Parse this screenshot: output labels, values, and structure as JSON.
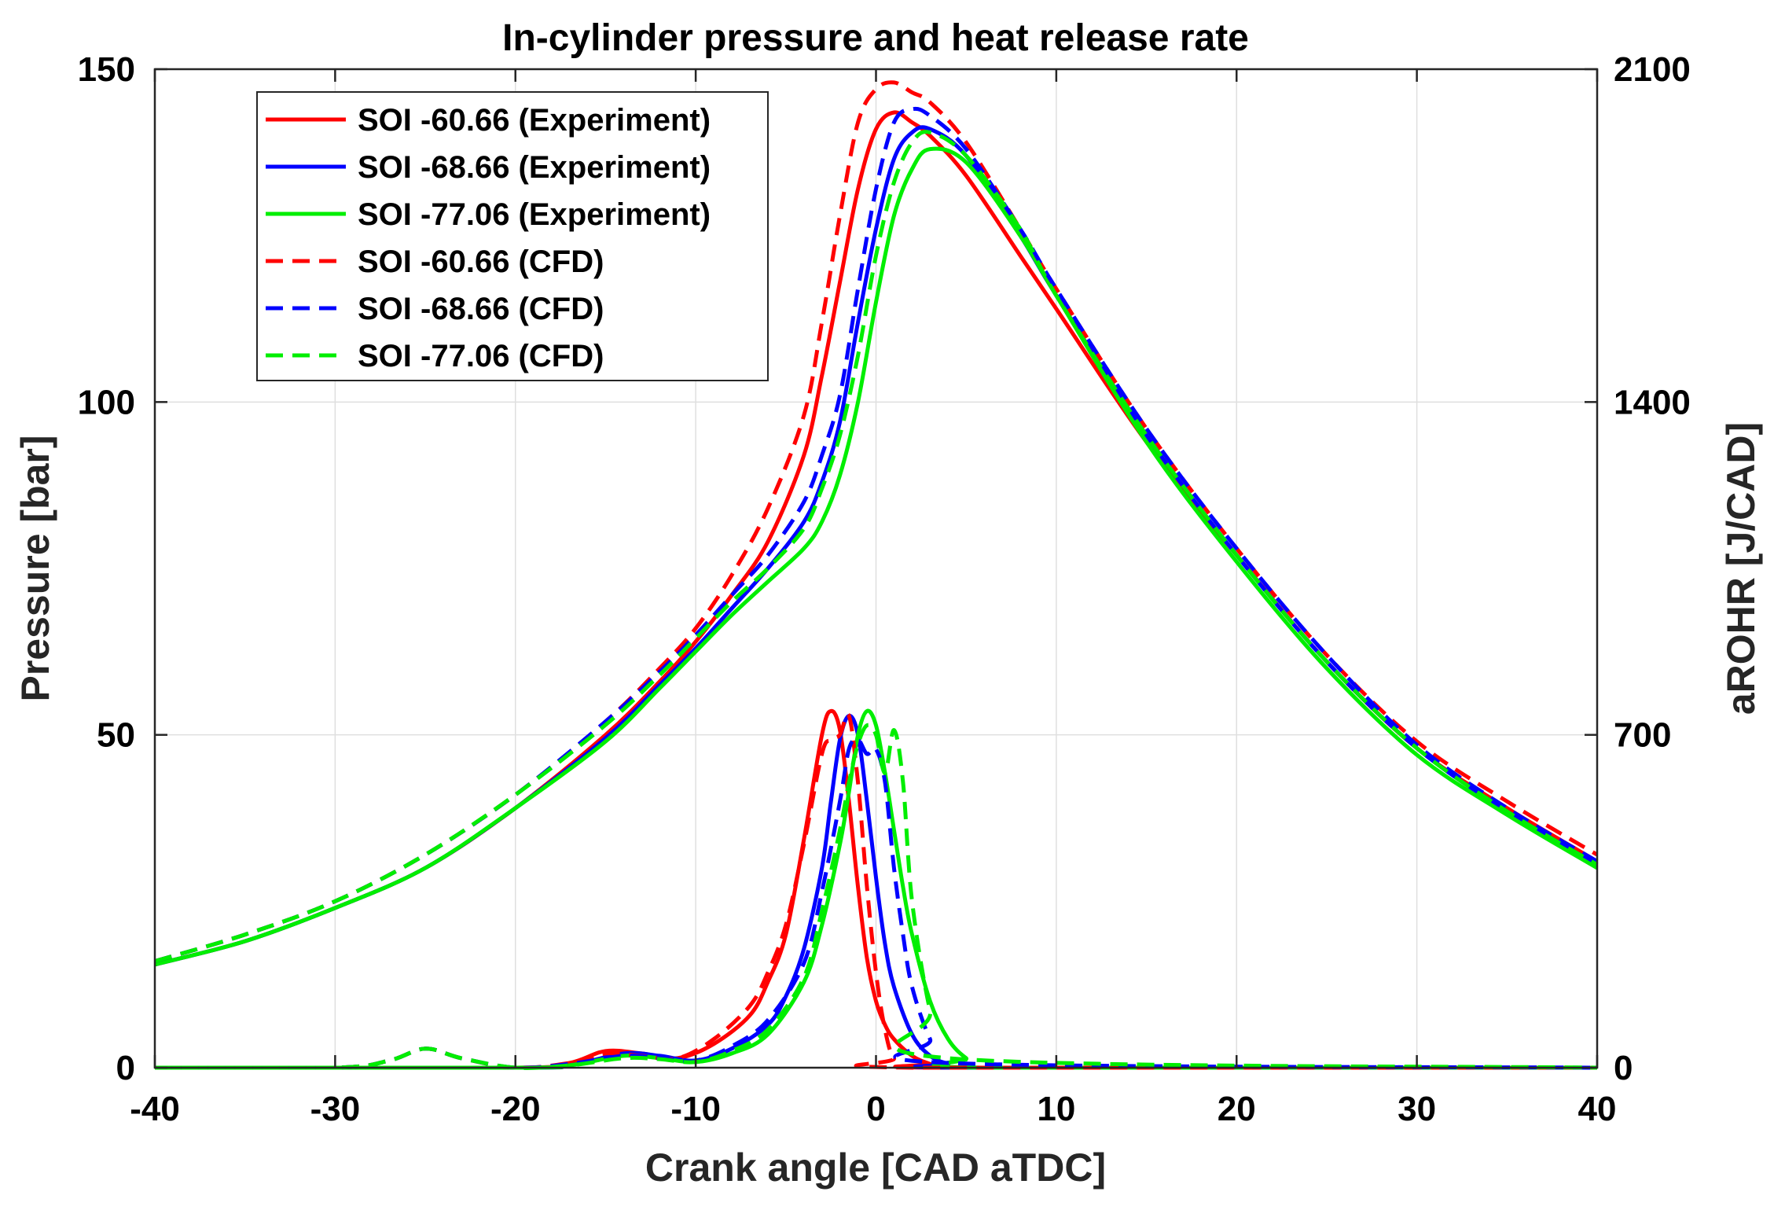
{
  "chart_data": {
    "type": "line",
    "title": "In-cylinder pressure and heat release rate",
    "xlabel": "Crank angle [CAD aTDC]",
    "ylabel": "Pressure [bar]",
    "y2label": "aROHR [J/CAD]",
    "xlim": [
      -40,
      40
    ],
    "ylim": [
      0,
      150
    ],
    "y2lim": [
      0,
      2100
    ],
    "xticks": [
      -40,
      -30,
      -20,
      -10,
      0,
      10,
      20,
      30,
      40
    ],
    "yticks": [
      0,
      50,
      100,
      150
    ],
    "y2ticks": [
      0,
      700,
      1400,
      2100
    ],
    "grid": true,
    "legend_position": "top-left",
    "legend": [
      {
        "label": "SOI -60.66 (Experiment)",
        "color": "#ff0000",
        "style": "solid"
      },
      {
        "label": "SOI -68.66 (Experiment)",
        "color": "#0000ff",
        "style": "solid"
      },
      {
        "label": "SOI -77.06 (Experiment)",
        "color": "#00ee00",
        "style": "solid"
      },
      {
        "label": "SOI -60.66 (CFD)",
        "color": "#ff0000",
        "style": "dashed"
      },
      {
        "label": "SOI -68.66 (CFD)",
        "color": "#0000ff",
        "style": "dashed"
      },
      {
        "label": "SOI -77.06 (CFD)",
        "color": "#00ee00",
        "style": "dashed"
      }
    ],
    "series": [
      {
        "name": "SOI -60.66 (Experiment) pressure",
        "axis": "left",
        "color": "#ff0000",
        "style": "solid",
        "x": [
          -40,
          -35,
          -30,
          -25,
          -20,
          -15,
          -12,
          -10,
          -8,
          -6,
          -4,
          -3,
          -2,
          -1,
          0,
          1,
          2,
          3,
          5,
          8,
          10,
          15,
          20,
          25,
          30,
          35,
          40
        ],
        "y": [
          15.5,
          19,
          24,
          30,
          39,
          50,
          58,
          64,
          71,
          79,
          92,
          104,
          118,
          132,
          141,
          143.5,
          142,
          140,
          134,
          122,
          114,
          94,
          77,
          61,
          48,
          39,
          31
        ]
      },
      {
        "name": "SOI -68.66 (Experiment) pressure",
        "axis": "left",
        "color": "#0000ff",
        "style": "solid",
        "x": [
          -40,
          -35,
          -30,
          -25,
          -20,
          -15,
          -12,
          -10,
          -8,
          -6,
          -4,
          -3,
          -2,
          -1,
          0,
          1,
          2,
          3,
          5,
          8,
          10,
          15,
          20,
          25,
          30,
          35,
          40
        ],
        "y": [
          15.5,
          19,
          24,
          30,
          39,
          49.5,
          57.5,
          63,
          69,
          75,
          82,
          88,
          97,
          112,
          126,
          136.5,
          140.5,
          141,
          137,
          125,
          116,
          95,
          77,
          61,
          48,
          38.5,
          30.5
        ]
      },
      {
        "name": "SOI -77.06 (Experiment) pressure",
        "axis": "left",
        "color": "#00ee00",
        "style": "solid",
        "x": [
          -40,
          -35,
          -30,
          -25,
          -20,
          -15,
          -12,
          -10,
          -8,
          -6,
          -4,
          -3,
          -2,
          -1,
          0,
          1,
          2,
          3,
          5,
          8,
          10,
          15,
          20,
          25,
          30,
          35,
          40
        ],
        "y": [
          15.5,
          19,
          24,
          30,
          39,
          49,
          57,
          62.5,
          68,
          73,
          78,
          82,
          89,
          100,
          115,
          128,
          135,
          138,
          136,
          125,
          116,
          94,
          76,
          60,
          47,
          38,
          30
        ]
      },
      {
        "name": "SOI -60.66 (CFD) pressure",
        "axis": "left",
        "color": "#ff0000",
        "style": "dashed",
        "x": [
          -40,
          -35,
          -30,
          -25,
          -20,
          -15,
          -12,
          -10,
          -8,
          -6,
          -4,
          -3,
          -2,
          -1,
          0,
          1,
          2,
          3,
          5,
          8,
          10,
          15,
          20,
          25,
          30,
          35,
          40
        ],
        "y": [
          16,
          20,
          25,
          32,
          41,
          52,
          60,
          66,
          74,
          84,
          98,
          112,
          128,
          142,
          147,
          148,
          146.5,
          145,
          139,
          126,
          117,
          96,
          78,
          62,
          49,
          40,
          32
        ]
      },
      {
        "name": "SOI -68.66 (CFD) pressure",
        "axis": "left",
        "color": "#0000ff",
        "style": "dashed",
        "x": [
          -40,
          -35,
          -30,
          -25,
          -20,
          -15,
          -12,
          -10,
          -8,
          -6,
          -4,
          -3,
          -2,
          -1,
          0,
          1,
          2,
          3,
          5,
          8,
          10,
          15,
          20,
          25,
          30,
          35,
          40
        ],
        "y": [
          16,
          20,
          25,
          32,
          41,
          52,
          59.5,
          65,
          71,
          77,
          85,
          92,
          101,
          117,
          132,
          142,
          144,
          143,
          138,
          126,
          117,
          96,
          78,
          62,
          48.5,
          39,
          31
        ]
      },
      {
        "name": "SOI -77.06 (CFD) pressure",
        "axis": "left",
        "color": "#00ee00",
        "style": "dashed",
        "x": [
          -40,
          -35,
          -30,
          -25,
          -20,
          -15,
          -12,
          -10,
          -8,
          -6,
          -4,
          -3,
          -2,
          -1,
          0,
          1,
          2,
          3,
          5,
          8,
          10,
          15,
          20,
          25,
          30,
          35,
          40
        ],
        "y": [
          16,
          20,
          25,
          32,
          41,
          51.5,
          59,
          64.5,
          70,
          75,
          81,
          87,
          95,
          107,
          122,
          133,
          139,
          140.5,
          137,
          126,
          116,
          95,
          77,
          61,
          48,
          38.5,
          30.5
        ]
      },
      {
        "name": "SOI -60.66 (Experiment) aROHR",
        "axis": "right",
        "color": "#ff0000",
        "style": "solid",
        "x": [
          -40,
          -20,
          -17,
          -15,
          -13,
          -11,
          -9,
          -7,
          -6,
          -5,
          -4,
          -3,
          -2.5,
          -2,
          -1.5,
          -1,
          -0.5,
          0,
          0.5,
          1,
          2,
          3,
          4,
          40
        ],
        "y": [
          0,
          0,
          10,
          35,
          30,
          20,
          50,
          110,
          180,
          280,
          480,
          700,
          750,
          710,
          560,
          380,
          230,
          140,
          90,
          60,
          25,
          8,
          0,
          0
        ]
      },
      {
        "name": "SOI -68.66 (Experiment) aROHR",
        "axis": "right",
        "color": "#0000ff",
        "style": "solid",
        "x": [
          -40,
          -20,
          -17,
          -14,
          -12,
          -10,
          -8,
          -6,
          -5,
          -4,
          -3,
          -2.5,
          -2,
          -1.5,
          -1,
          -0.5,
          0,
          0.5,
          1,
          2,
          3,
          4,
          5,
          40
        ],
        "y": [
          0,
          0,
          5,
          30,
          25,
          15,
          40,
          90,
          150,
          250,
          420,
          560,
          690,
          740,
          700,
          560,
          400,
          260,
          170,
          70,
          25,
          8,
          0,
          0
        ]
      },
      {
        "name": "SOI -77.06 (Experiment) aROHR",
        "axis": "right",
        "color": "#00ee00",
        "style": "solid",
        "x": [
          -40,
          -20,
          -17,
          -14,
          -12,
          -10,
          -8,
          -6,
          -4,
          -3,
          -2,
          -1.5,
          -1,
          -0.5,
          0,
          0.5,
          1,
          1.5,
          2,
          3,
          4,
          5,
          6,
          40
        ],
        "y": [
          0,
          0,
          5,
          25,
          20,
          12,
          30,
          70,
          180,
          300,
          470,
          580,
          700,
          750,
          720,
          620,
          500,
          380,
          280,
          140,
          60,
          20,
          0,
          0
        ]
      },
      {
        "name": "SOI -60.66 (CFD) aROHR",
        "axis": "right",
        "color": "#ff0000",
        "style": "dashed",
        "x": [
          -40,
          -30,
          -27,
          -25,
          -23,
          -20,
          -17,
          -15,
          -13,
          -11,
          -9,
          -7,
          -6,
          -5,
          -4,
          -3,
          -2.5,
          -2,
          -1.5,
          -1,
          -0.5,
          0,
          0.5,
          1,
          2,
          40
        ],
        "y": [
          0,
          0,
          15,
          40,
          20,
          0,
          10,
          30,
          25,
          20,
          60,
          130,
          200,
          300,
          470,
          660,
          690,
          700,
          740,
          600,
          380,
          200,
          80,
          20,
          0,
          0
        ]
      },
      {
        "name": "SOI -68.66 (CFD) aROHR",
        "axis": "right",
        "color": "#0000ff",
        "style": "dashed",
        "x": [
          -40,
          -30,
          -27,
          -25,
          -23,
          -20,
          -17,
          -14,
          -12,
          -10,
          -8,
          -6,
          -4,
          -3,
          -2,
          -1.5,
          -1,
          -0.5,
          0,
          0.5,
          1,
          1.5,
          2,
          3,
          4,
          40
        ],
        "y": [
          0,
          0,
          15,
          40,
          20,
          0,
          8,
          25,
          20,
          15,
          45,
          100,
          220,
          370,
          560,
          670,
          690,
          660,
          670,
          600,
          420,
          280,
          170,
          60,
          10,
          0
        ]
      },
      {
        "name": "SOI -77.06 (CFD) aROHR",
        "axis": "right",
        "color": "#00ee00",
        "style": "dashed",
        "x": [
          -40,
          -30,
          -27,
          -25,
          -23,
          -20,
          -17,
          -14,
          -12,
          -10,
          -8,
          -6,
          -4,
          -3,
          -2,
          -1.5,
          -1,
          -0.5,
          0,
          0.5,
          1,
          1.5,
          2,
          3,
          4,
          40
        ],
        "y": [
          0,
          0,
          15,
          40,
          20,
          0,
          5,
          20,
          18,
          12,
          35,
          80,
          190,
          330,
          500,
          600,
          680,
          720,
          700,
          620,
          710,
          600,
          350,
          120,
          20,
          0
        ]
      }
    ]
  }
}
